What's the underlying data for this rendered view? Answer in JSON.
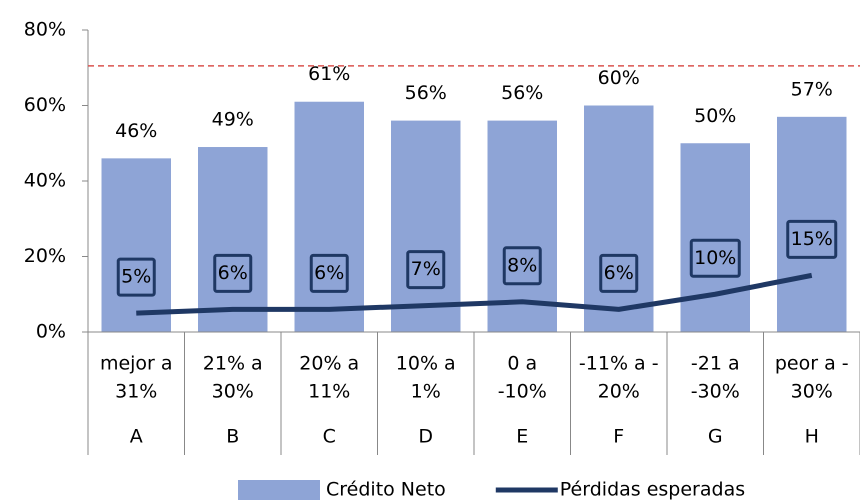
{
  "chart_data": {
    "type": "bar-line",
    "categories": [
      [
        "mejor a",
        "31%"
      ],
      [
        "21% a",
        "30%"
      ],
      [
        "20% a",
        "11%"
      ],
      [
        "10% a",
        "1%"
      ],
      [
        "0 a",
        "-10%"
      ],
      [
        "-11% a -",
        "20%"
      ],
      [
        "-21 a",
        "-30%"
      ],
      [
        "peor a -",
        "30%"
      ]
    ],
    "groups": [
      "A",
      "B",
      "C",
      "D",
      "E",
      "F",
      "G",
      "H"
    ],
    "series": [
      {
        "name": "Crédito Neto",
        "type": "bar",
        "color": "#8ea4d6",
        "values": [
          46,
          49,
          61,
          56,
          56,
          60,
          50,
          57
        ],
        "value_labels": [
          "46%",
          "49%",
          "61%",
          "56%",
          "56%",
          "60%",
          "50%",
          "57%"
        ]
      },
      {
        "name": "Pérdidas esperadas",
        "type": "line",
        "color": "#1f3864",
        "values": [
          5,
          6,
          6,
          7,
          8,
          6,
          10,
          15
        ],
        "value_labels": [
          "5%",
          "6%",
          "6%",
          "7%",
          "8%",
          "6%",
          "10%",
          "15%"
        ]
      }
    ],
    "reference_line": {
      "value": 70.5,
      "color": "#d9534f"
    },
    "ylim": [
      0,
      80
    ],
    "yticks": [
      {
        "value": 0,
        "label": "0%"
      },
      {
        "value": 20,
        "label": "20%"
      },
      {
        "value": 40,
        "label": "40%"
      },
      {
        "value": 60,
        "label": "60%"
      },
      {
        "value": 80,
        "label": "80%"
      }
    ],
    "legend": "bottom"
  }
}
